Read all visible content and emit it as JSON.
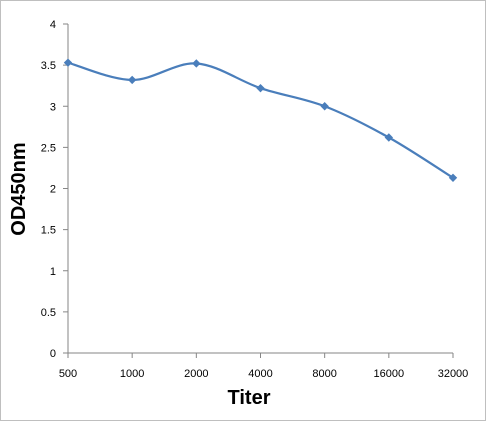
{
  "chart_data": {
    "type": "line",
    "title": "",
    "xlabel": "Titer",
    "ylabel": "OD450nm",
    "categories": [
      "500",
      "1000",
      "2000",
      "4000",
      "8000",
      "16000",
      "32000"
    ],
    "series": [
      {
        "values": [
          3.53,
          3.32,
          3.52,
          3.22,
          3.0,
          2.62,
          2.13
        ]
      }
    ],
    "ylim": [
      0,
      4
    ],
    "yticks": [
      "0",
      "0.5",
      "1",
      "1.5",
      "2",
      "2.5",
      "3",
      "3.5",
      "4"
    ],
    "grid": false,
    "legend": "none",
    "colors": {
      "line": "#4a7ebb",
      "marker": "#4a7ebb",
      "axis": "#868686"
    }
  }
}
